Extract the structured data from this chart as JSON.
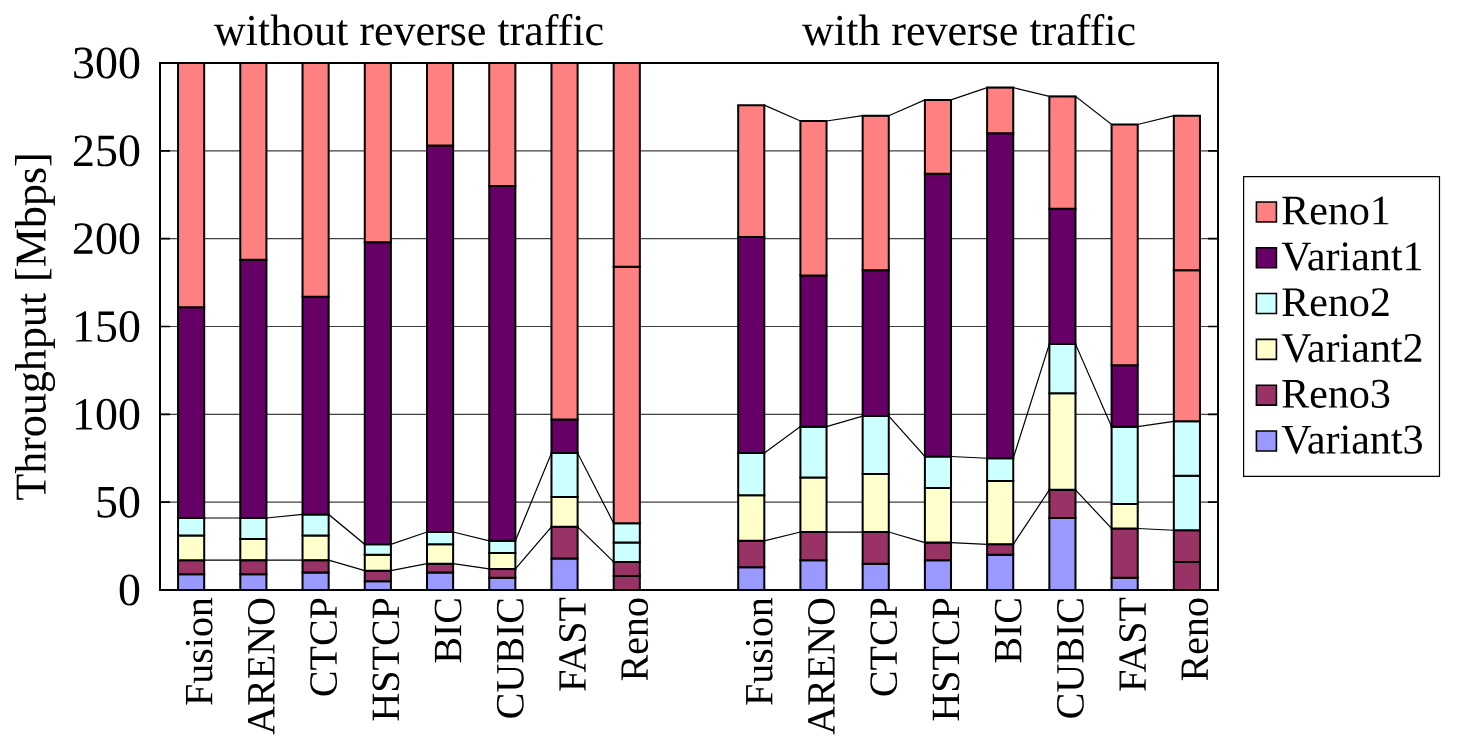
{
  "chart_data": {
    "type": "bar",
    "stacked": true,
    "ylabel": "Throughput [Mbps]",
    "annotations": [
      "without reverse traffic",
      "with reverse traffic"
    ],
    "categories": [
      "Fusion",
      "ARENO",
      "CTCP",
      "HSTCP",
      "BIC",
      "CUBIC",
      "FAST",
      "Reno",
      null,
      "Fusion",
      "ARENO",
      "CTCP",
      "HSTCP",
      "BIC",
      "CUBIC",
      "FAST",
      "Reno"
    ],
    "series": [
      {
        "name": "Variant3",
        "color": "#9999ff",
        "colors": [
          "#9999ff",
          "#9999ff",
          "#9999ff",
          "#9999ff",
          "#9999ff",
          "#9999ff",
          "#9999ff",
          "#993366",
          null,
          "#9999ff",
          "#9999ff",
          "#9999ff",
          "#9999ff",
          "#9999ff",
          "#9999ff",
          "#9999ff",
          "#993366"
        ],
        "values": [
          9,
          9,
          10,
          5,
          10,
          7,
          18,
          8,
          null,
          13,
          17,
          15,
          17,
          20,
          41,
          7,
          16
        ]
      },
      {
        "name": "Reno3",
        "color": "#993366",
        "values": [
          8,
          8,
          7,
          6,
          5,
          5,
          18,
          8,
          null,
          15,
          16,
          18,
          10,
          6,
          16,
          28,
          18
        ]
      },
      {
        "name": "Variant2",
        "color": "#ffffcc",
        "colors": [
          "#ffffcc",
          "#ffffcc",
          "#ffffcc",
          "#ffffcc",
          "#ffffcc",
          "#ffffcc",
          "#ffffcc",
          "#ccffff",
          null,
          "#ffffcc",
          "#ffffcc",
          "#ffffcc",
          "#ffffcc",
          "#ffffcc",
          "#ffffcc",
          "#ffffcc",
          "#ccffff"
        ],
        "values": [
          14,
          12,
          14,
          9,
          11,
          9,
          17,
          11,
          null,
          26,
          31,
          33,
          31,
          36,
          55,
          14,
          31
        ]
      },
      {
        "name": "Reno2",
        "color": "#ccffff",
        "values": [
          10,
          12,
          12,
          6,
          7,
          7,
          25,
          11,
          null,
          24,
          29,
          33,
          18,
          13,
          28,
          44,
          31
        ]
      },
      {
        "name": "Variant1",
        "color": "#660066",
        "colors": [
          "#660066",
          "#660066",
          "#660066",
          "#660066",
          "#660066",
          "#660066",
          "#660066",
          "#ff8080",
          null,
          "#660066",
          "#660066",
          "#660066",
          "#660066",
          "#660066",
          "#660066",
          "#660066",
          "#ff8080"
        ],
        "values": [
          120,
          147,
          124,
          172,
          220,
          202,
          19,
          146,
          null,
          123,
          86,
          83,
          161,
          185,
          77,
          35,
          86
        ]
      },
      {
        "name": "Reno1",
        "color": "#ff8080",
        "values": [
          139,
          112,
          133,
          102,
          47,
          70,
          203,
          116,
          null,
          75,
          88,
          88,
          42,
          26,
          64,
          137,
          88
        ]
      }
    ],
    "ylim": [
      0,
      300
    ],
    "yticks": [
      0,
      50,
      100,
      150,
      200,
      250,
      300
    ],
    "grid": "y",
    "legend": "right"
  }
}
